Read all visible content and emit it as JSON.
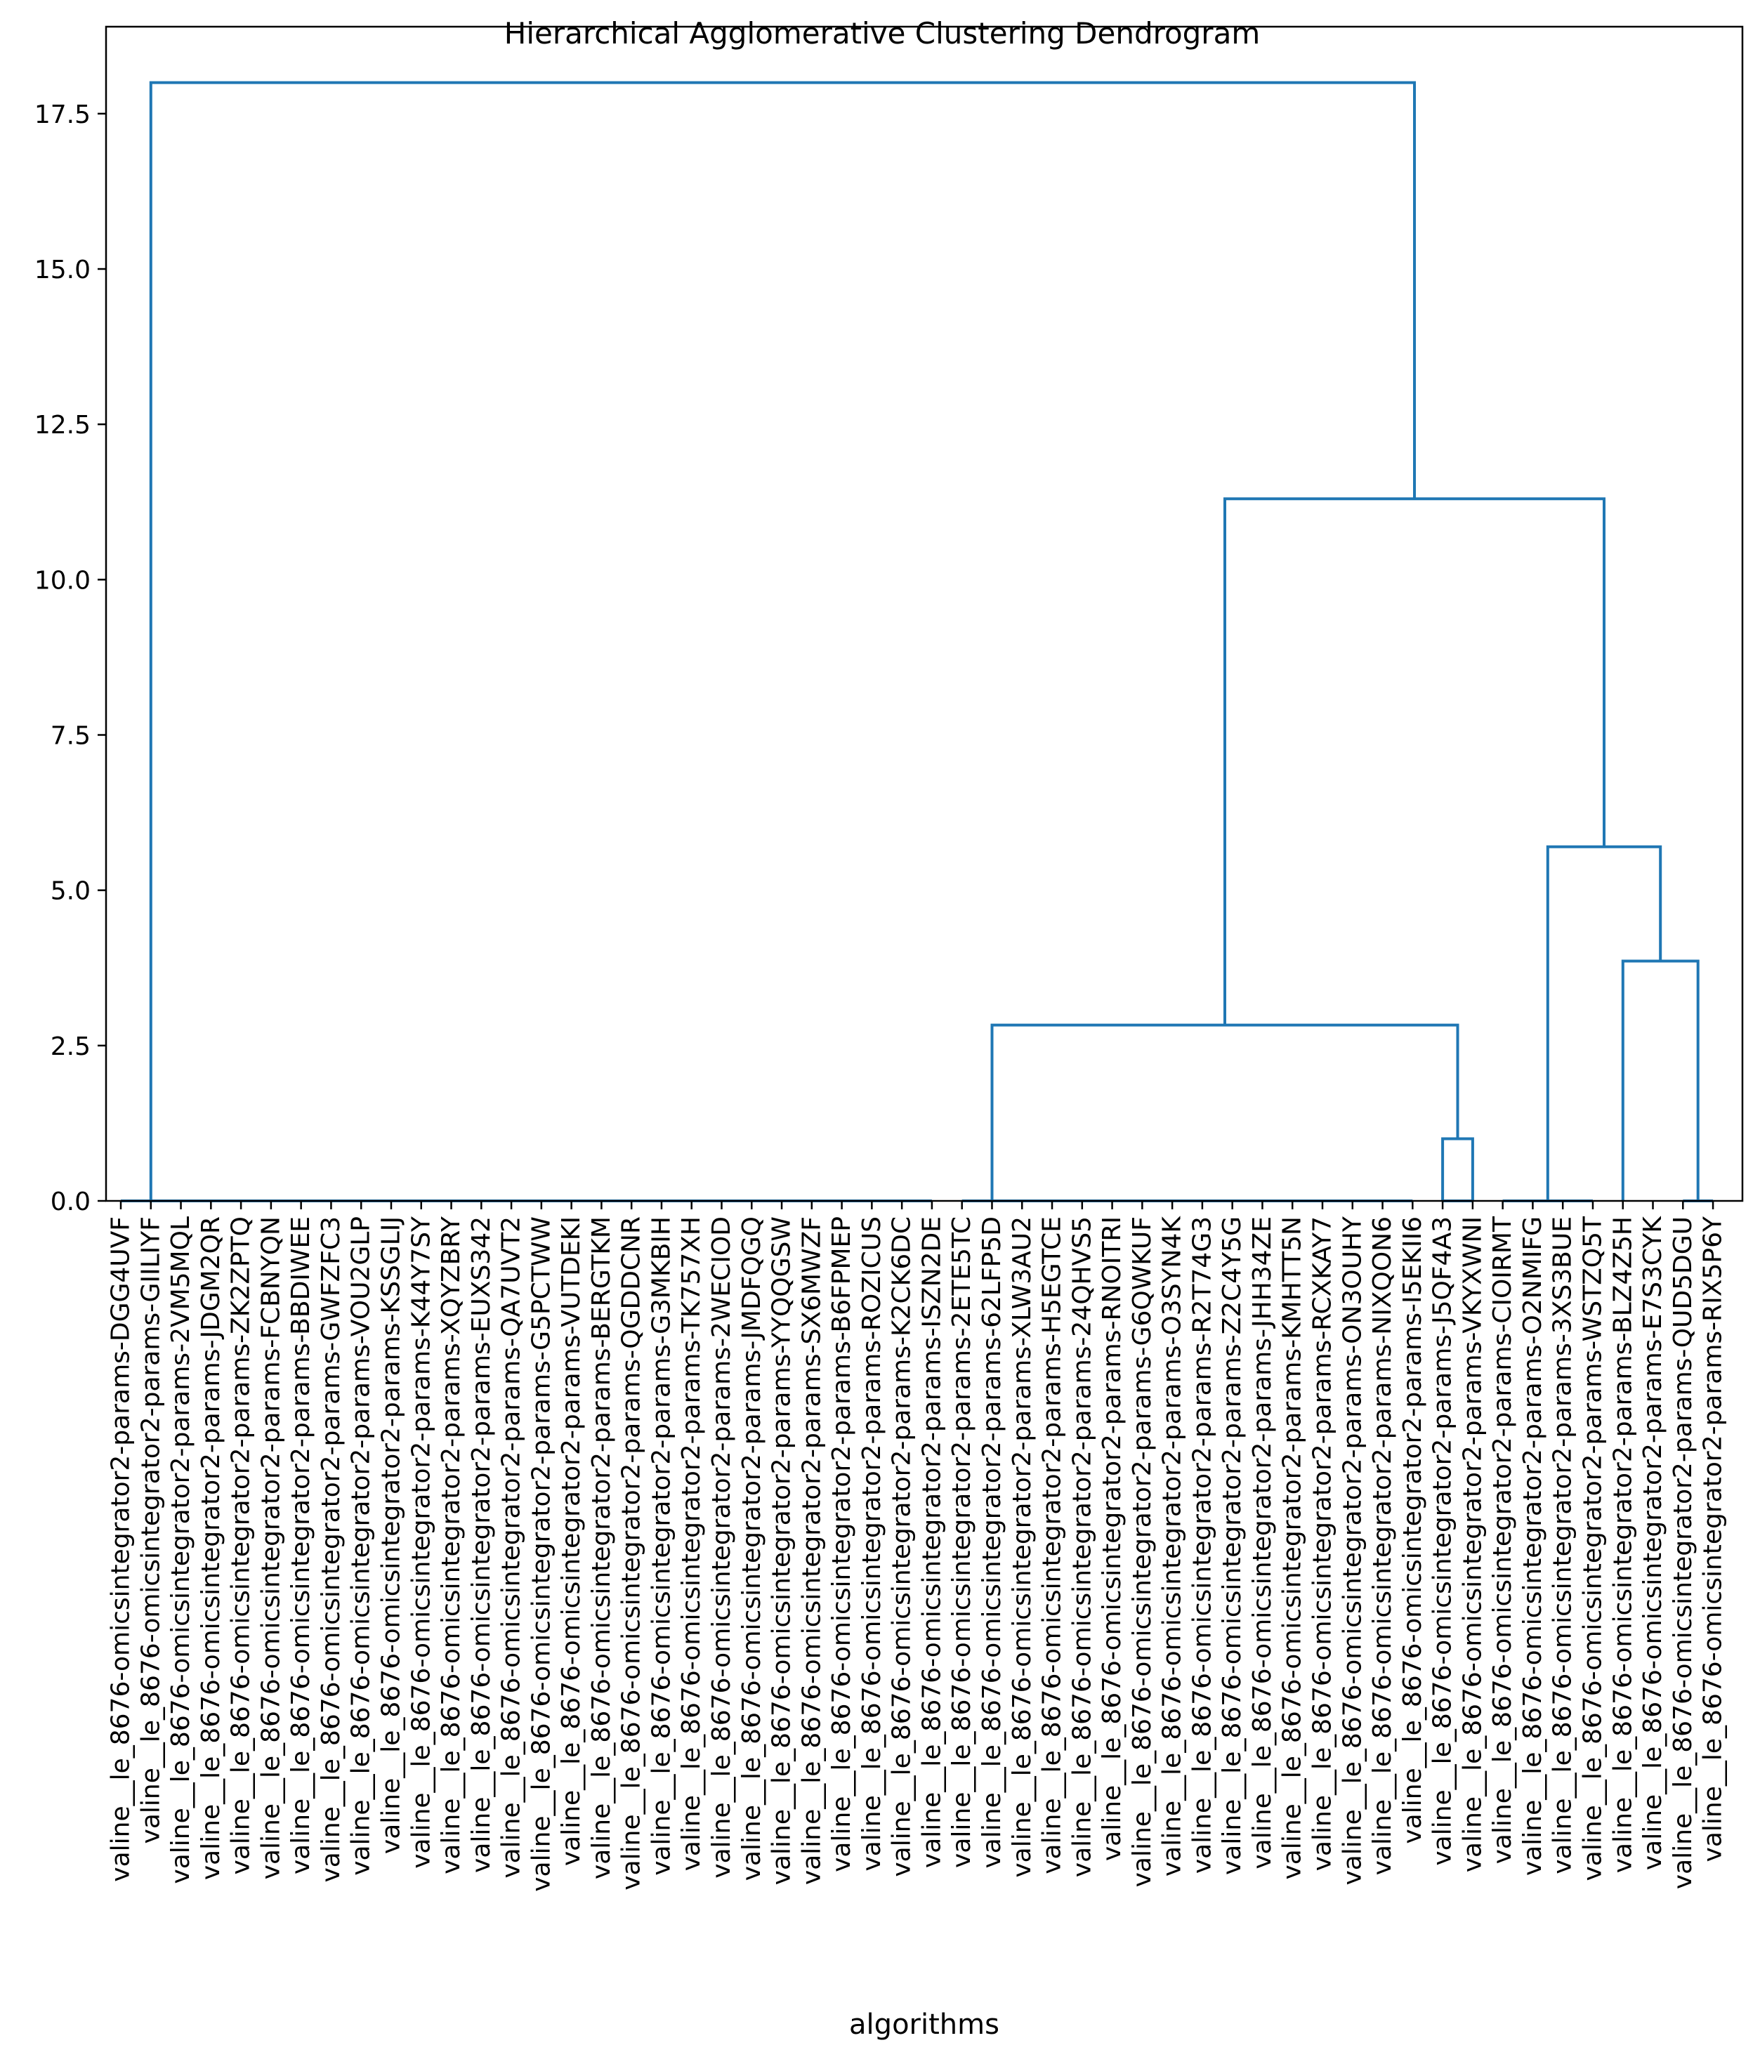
{
  "chart_data": {
    "type": "dendrogram",
    "title": "Hierarchical Agglomerative Clustering Dendrogram",
    "xlabel": "algorithms",
    "ylabel": "",
    "ylim": [
      0,
      18.9
    ],
    "yticks": [
      "0.0",
      "2.5",
      "5.0",
      "7.5",
      "10.0",
      "12.5",
      "15.0",
      "17.5"
    ],
    "grid": false,
    "color": "#1f77b4",
    "leaves": [
      "valine__le_8676-omicsintegrator2-params-DGG4UVF",
      "valine__le_8676-omicsintegrator2-params-GIILIYF",
      "valine__le_8676-omicsintegrator2-params-2VM5MQL",
      "valine__le_8676-omicsintegrator2-params-JDGM2QR",
      "valine__le_8676-omicsintegrator2-params-ZK2ZPTQ",
      "valine__le_8676-omicsintegrator2-params-FCBNYQN",
      "valine__le_8676-omicsintegrator2-params-BBDIWEE",
      "valine__le_8676-omicsintegrator2-params-GWFZFC3",
      "valine__le_8676-omicsintegrator2-params-VOU2GLP",
      "valine__le_8676-omicsintegrator2-params-KSSGLIJ",
      "valine__le_8676-omicsintegrator2-params-K44Y7SY",
      "valine__le_8676-omicsintegrator2-params-XQYZBRY",
      "valine__le_8676-omicsintegrator2-params-EUXS342",
      "valine__le_8676-omicsintegrator2-params-QA7UVT2",
      "valine__le_8676-omicsintegrator2-params-G5PCTWW",
      "valine__le_8676-omicsintegrator2-params-VUTDEKI",
      "valine__le_8676-omicsintegrator2-params-BERGTKM",
      "valine__le_8676-omicsintegrator2-params-QGDDCNR",
      "valine__le_8676-omicsintegrator2-params-G3MKBIH",
      "valine__le_8676-omicsintegrator2-params-TK757XH",
      "valine__le_8676-omicsintegrator2-params-2WECIOD",
      "valine__le_8676-omicsintegrator2-params-JMDFQGQ",
      "valine__le_8676-omicsintegrator2-params-YYQQGSW",
      "valine__le_8676-omicsintegrator2-params-SX6MWZF",
      "valine__le_8676-omicsintegrator2-params-B6FPMEP",
      "valine__le_8676-omicsintegrator2-params-ROZICUS",
      "valine__le_8676-omicsintegrator2-params-K2CK6DC",
      "valine__le_8676-omicsintegrator2-params-ISZN2DE",
      "valine__le_8676-omicsintegrator2-params-2ETE5TC",
      "valine__le_8676-omicsintegrator2-params-62LFP5D",
      "valine__le_8676-omicsintegrator2-params-XLW3AU2",
      "valine__le_8676-omicsintegrator2-params-H5EGTCE",
      "valine__le_8676-omicsintegrator2-params-24QHVS5",
      "valine__le_8676-omicsintegrator2-params-RNOITRI",
      "valine__le_8676-omicsintegrator2-params-G6QWKUF",
      "valine__le_8676-omicsintegrator2-params-O3SYN4K",
      "valine__le_8676-omicsintegrator2-params-R2T74G3",
      "valine__le_8676-omicsintegrator2-params-Z2C4Y5G",
      "valine__le_8676-omicsintegrator2-params-JHH34ZE",
      "valine__le_8676-omicsintegrator2-params-KMHTT5N",
      "valine__le_8676-omicsintegrator2-params-RCXKAY7",
      "valine__le_8676-omicsintegrator2-params-ON3OUHY",
      "valine__le_8676-omicsintegrator2-params-NIXQON6",
      "valine__le_8676-omicsintegrator2-params-I5EKII6",
      "valine__le_8676-omicsintegrator2-params-J5QF4A3",
      "valine__le_8676-omicsintegrator2-params-VKYXWNI",
      "valine__le_8676-omicsintegrator2-params-CIOIRMT",
      "valine__le_8676-omicsintegrator2-params-O2NMIFG",
      "valine__le_8676-omicsintegrator2-params-3XS3BUE",
      "valine__le_8676-omicsintegrator2-params-WSTZQ5T",
      "valine__le_8676-omicsintegrator2-params-BLZ4Z5H",
      "valine__le_8676-omicsintegrator2-params-E7S3CYK",
      "valine__le_8676-omicsintegrator2-params-QUD5DGU",
      "valine__le_8676-omicsintegrator2-params-RIX5P6Y"
    ],
    "links": [
      {
        "x": [
          0,
          0,
          27,
          27
        ],
        "y": [
          0,
          0,
          0,
          0
        ]
      },
      {
        "x": [
          28,
          28,
          43,
          43
        ],
        "y": [
          0,
          0,
          0,
          0
        ]
      },
      {
        "x": [
          44,
          44,
          45,
          45
        ],
        "y": [
          0,
          0,
          0,
          0
        ]
      },
      {
        "x": [
          46,
          46,
          49,
          49
        ],
        "y": [
          0,
          0,
          0,
          0
        ]
      },
      {
        "x": [
          52,
          52,
          53,
          53
        ],
        "y": [
          0,
          0,
          0,
          0
        ]
      },
      {
        "x": [
          44,
          44,
          45,
          45
        ],
        "y": [
          0,
          1.0,
          1.0,
          0
        ]
      },
      {
        "x": [
          29,
          29,
          44.5,
          44.5
        ],
        "y": [
          0,
          2.83,
          2.83,
          1.0
        ]
      },
      {
        "x": [
          50,
          50,
          52.5,
          52.5
        ],
        "y": [
          0,
          3.86,
          3.86,
          0
        ]
      },
      {
        "x": [
          47.5,
          47.5,
          51.25,
          51.25
        ],
        "y": [
          0,
          5.7,
          5.7,
          3.86
        ]
      },
      {
        "x": [
          36.75,
          36.75,
          49.375,
          49.375
        ],
        "y": [
          2.83,
          11.3,
          11.3,
          5.7
        ]
      },
      {
        "x": [
          1,
          1,
          43.0625,
          43.0625
        ],
        "y": [
          0,
          18.0,
          18.0,
          11.3
        ]
      }
    ]
  }
}
